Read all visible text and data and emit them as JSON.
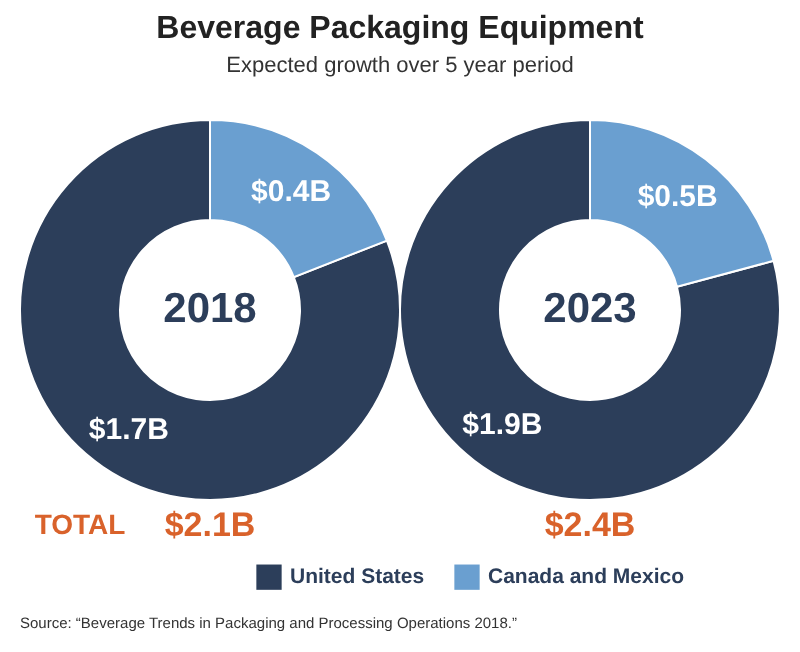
{
  "chart_data": [
    {
      "type": "donut",
      "title": "Beverage Packaging Equipment",
      "subtitle": "Expected growth over 5 year period",
      "categories": [
        "United States",
        "Canada and Mexico"
      ],
      "values": [
        1.7,
        0.4
      ],
      "value_labels": [
        "$1.7B",
        "$0.4B"
      ],
      "colors": [
        "#2c3e5a",
        "#6a9fd0"
      ],
      "legend": "bottom",
      "annotations": [
        "2018",
        "$2.1B",
        "TOTAL",
        "Source: “Beverage Trends in Packaging and Processing Operations 2018.”"
      ]
    },
    {
      "type": "donut",
      "values": [
        1.9,
        0.5
      ],
      "value_labels": [
        "$1.9B",
        "$0.5B"
      ],
      "colors": [
        "#2c3e5a",
        "#6a9fd0"
      ],
      "annotations": [
        "2023",
        "$2.4B"
      ]
    }
  ]
}
